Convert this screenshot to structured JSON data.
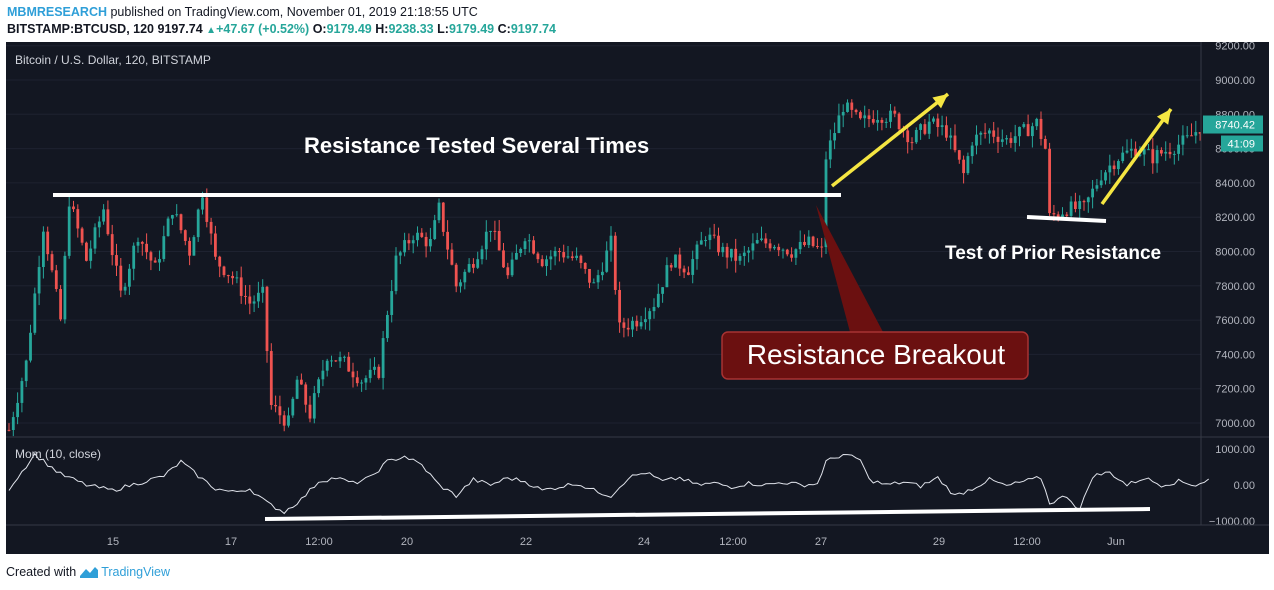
{
  "header": {
    "publisher": "MBMRESEARCH",
    "published_text": "published on TradingView.com, November 01, 2019 21:18:55 UTC",
    "symbol": "BITSTAMP:BTCUSD, 120",
    "last": "9197.74",
    "change": "+47.67 (+0.52%)",
    "o_label": "O:",
    "o_value": "9179.49",
    "h_label": "H:",
    "h_value": "9238.33",
    "l_label": "L:",
    "l_value": "9179.49",
    "c_label": "C:",
    "c_value": "9197.74"
  },
  "footer": {
    "created_with": "Created with",
    "brand": "TradingView"
  },
  "colors": {
    "background": "#131722",
    "up": "#26a69a",
    "down": "#ef5350",
    "brand": "#2f9fd8",
    "arrow": "#f5e642",
    "callout_fill": "#6b1010",
    "callout_border": "#a83232"
  },
  "chart_data": {
    "type": "candlestick",
    "symbol_label": "Bitcoin / U.S. Dollar, 120, BITSTAMP",
    "price_axis": {
      "ticks": [
        7000,
        7200,
        7400,
        7600,
        7800,
        8000,
        8200,
        8400,
        8600,
        8800,
        9000,
        9200
      ],
      "tick_labels": [
        "7000.00",
        "7200.00",
        "7400.00",
        "7600.00",
        "7800.00",
        "8000.00",
        "8200.00",
        "8400.00",
        "8600.00",
        "8800.00",
        "9000.00",
        "9200.00"
      ],
      "range": [
        6930,
        9230
      ]
    },
    "current_price_label": "8740.42",
    "countdown_label": "41:09",
    "x_ticks": [
      "15",
      "17",
      "12:00",
      "20",
      "22",
      "24",
      "12:00",
      "27",
      "29",
      "12:00",
      "Jun"
    ],
    "price_path": [
      [
        0,
        6960
      ],
      [
        4,
        7350
      ],
      [
        8,
        8150
      ],
      [
        12,
        7600
      ],
      [
        14,
        8300
      ],
      [
        18,
        7950
      ],
      [
        22,
        8250
      ],
      [
        26,
        7750
      ],
      [
        30,
        8100
      ],
      [
        34,
        7900
      ],
      [
        38,
        8250
      ],
      [
        42,
        8000
      ],
      [
        45,
        8350
      ],
      [
        48,
        7950
      ],
      [
        52,
        7850
      ],
      [
        56,
        7700
      ],
      [
        59,
        7750
      ],
      [
        61,
        7100
      ],
      [
        65,
        7000
      ],
      [
        67,
        7250
      ],
      [
        70,
        7050
      ],
      [
        74,
        7400
      ],
      [
        78,
        7350
      ],
      [
        82,
        7250
      ],
      [
        86,
        7300
      ],
      [
        88,
        7650
      ],
      [
        90,
        7950
      ],
      [
        94,
        8100
      ],
      [
        98,
        8050
      ],
      [
        100,
        8250
      ],
      [
        104,
        7800
      ],
      [
        108,
        7950
      ],
      [
        112,
        8150
      ],
      [
        116,
        7850
      ],
      [
        120,
        8100
      ],
      [
        124,
        7950
      ],
      [
        128,
        8000
      ],
      [
        132,
        7950
      ],
      [
        136,
        7800
      ],
      [
        140,
        8050
      ],
      [
        142,
        7550
      ],
      [
        146,
        7600
      ],
      [
        150,
        7700
      ],
      [
        154,
        7950
      ],
      [
        158,
        7900
      ],
      [
        162,
        8100
      ],
      [
        166,
        8000
      ],
      [
        170,
        7950
      ],
      [
        174,
        8050
      ],
      [
        178,
        8050
      ],
      [
        182,
        8000
      ],
      [
        186,
        8050
      ],
      [
        189,
        8000
      ],
      [
        190,
        8550
      ],
      [
        194,
        8850
      ],
      [
        198,
        8750
      ],
      [
        202,
        8800
      ],
      [
        206,
        8780
      ],
      [
        210,
        8650
      ],
      [
        214,
        8750
      ],
      [
        218,
        8700
      ],
      [
        222,
        8450
      ],
      [
        224,
        8650
      ],
      [
        228,
        8700
      ],
      [
        232,
        8650
      ],
      [
        236,
        8700
      ],
      [
        239,
        8750
      ],
      [
        241,
        8600
      ],
      [
        242,
        8200
      ],
      [
        246,
        8250
      ],
      [
        250,
        8250
      ],
      [
        254,
        8450
      ],
      [
        258,
        8550
      ],
      [
        262,
        8600
      ],
      [
        266,
        8550
      ],
      [
        270,
        8600
      ],
      [
        274,
        8650
      ],
      [
        278,
        8750
      ],
      [
        279,
        8740
      ]
    ],
    "momentum": {
      "label": "Mom (10, close)",
      "ticks": [
        1000,
        0,
        -1000
      ],
      "tick_labels": [
        "1000.00",
        "0.00",
        "−1000.00"
      ],
      "path": [
        [
          0,
          -100
        ],
        [
          6,
          850
        ],
        [
          12,
          300
        ],
        [
          18,
          0
        ],
        [
          24,
          -150
        ],
        [
          30,
          50
        ],
        [
          36,
          250
        ],
        [
          40,
          650
        ],
        [
          44,
          250
        ],
        [
          48,
          -100
        ],
        [
          52,
          -200
        ],
        [
          56,
          -100
        ],
        [
          60,
          -500
        ],
        [
          64,
          -750
        ],
        [
          68,
          -400
        ],
        [
          72,
          100
        ],
        [
          76,
          200
        ],
        [
          80,
          50
        ],
        [
          84,
          200
        ],
        [
          88,
          650
        ],
        [
          92,
          800
        ],
        [
          96,
          550
        ],
        [
          100,
          0
        ],
        [
          104,
          -300
        ],
        [
          108,
          150
        ],
        [
          112,
          0
        ],
        [
          116,
          200
        ],
        [
          120,
          100
        ],
        [
          124,
          -150
        ],
        [
          128,
          -50
        ],
        [
          132,
          50
        ],
        [
          136,
          -150
        ],
        [
          140,
          -300
        ],
        [
          144,
          200
        ],
        [
          148,
          350
        ],
        [
          152,
          100
        ],
        [
          156,
          200
        ],
        [
          160,
          0
        ],
        [
          164,
          50
        ],
        [
          168,
          -50
        ],
        [
          172,
          50
        ],
        [
          176,
          0
        ],
        [
          180,
          80
        ],
        [
          184,
          0
        ],
        [
          188,
          30
        ],
        [
          190,
          650
        ],
        [
          194,
          850
        ],
        [
          198,
          700
        ],
        [
          200,
          150
        ],
        [
          204,
          0
        ],
        [
          208,
          80
        ],
        [
          212,
          -30
        ],
        [
          216,
          200
        ],
        [
          220,
          -300
        ],
        [
          224,
          -100
        ],
        [
          228,
          150
        ],
        [
          232,
          -30
        ],
        [
          236,
          100
        ],
        [
          240,
          200
        ],
        [
          242,
          -500
        ],
        [
          246,
          -300
        ],
        [
          249,
          -700
        ],
        [
          252,
          250
        ],
        [
          256,
          350
        ],
        [
          260,
          0
        ],
        [
          264,
          200
        ],
        [
          268,
          0
        ],
        [
          272,
          100
        ],
        [
          276,
          0
        ],
        [
          279,
          150
        ]
      ]
    }
  },
  "annotations": {
    "resistance_title": "Resistance Tested Several Times",
    "breakout_label": "Resistance Breakout",
    "retest_label": "Test of Prior Resistance"
  }
}
